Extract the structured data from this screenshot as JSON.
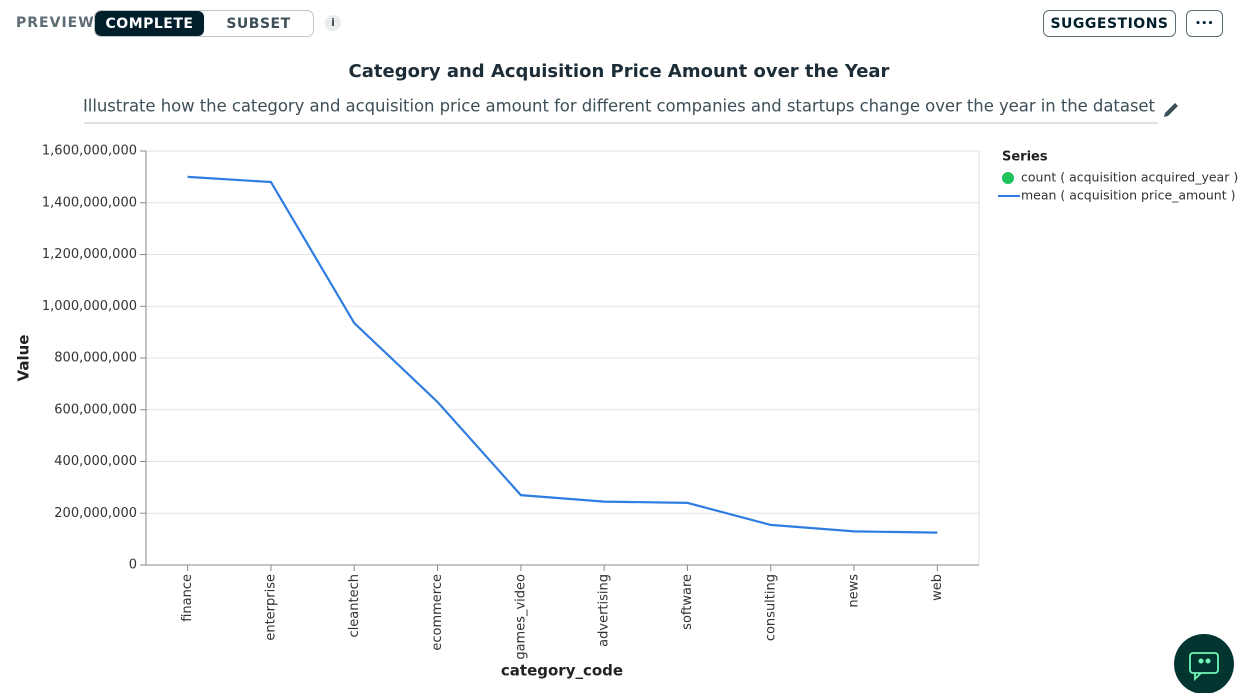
{
  "toolbar": {
    "label": "PREVIEW",
    "tabs": [
      "COMPLETE",
      "SUBSET"
    ],
    "info": "i",
    "suggestions": "SUGGESTIONS",
    "more": "•••"
  },
  "chart_data": {
    "type": "line",
    "title": "Category and Acquisition Price Amount over the Year",
    "subtitle": "Illustrate how the category and acquisition price amount for different companies and startups change over the year in the dataset",
    "x_label": "category_code",
    "y_label": "Value",
    "categories": [
      "finance",
      "enterprise",
      "cleantech",
      "ecommerce",
      "games_video",
      "advertising",
      "software",
      "consulting",
      "news",
      "web"
    ],
    "legend_title": "Series",
    "series": [
      {
        "name": "count ( acquisition acquired_year )",
        "color": "#1fc45e"
      },
      {
        "name": "mean ( acquisition price_amount )",
        "color": "#2f7de1",
        "values": [
          1500000000,
          1480000000,
          935000000,
          630000000,
          270000000,
          245000000,
          240000000,
          155000000,
          130000000,
          125000000
        ]
      }
    ],
    "ylim": [
      0,
      1600000000
    ],
    "yticks": [
      0,
      {
        "value": 200000000,
        "label": "200,000,000"
      },
      {
        "value": 400000000,
        "label": "400,000,000"
      },
      {
        "value": 600000000,
        "label": "600,000,000"
      },
      {
        "value": 800000000,
        "label": "800,000,000"
      },
      {
        "value": 1000000000,
        "label": "1,000,000,000"
      },
      {
        "value": 1200000000,
        "label": "1,200,000,000"
      },
      {
        "value": 1400000000,
        "label": "1,400,000,000"
      },
      {
        "value": 1600000000,
        "label": "1,600,000,000"
      }
    ],
    "grid": true,
    "legend": "right"
  }
}
